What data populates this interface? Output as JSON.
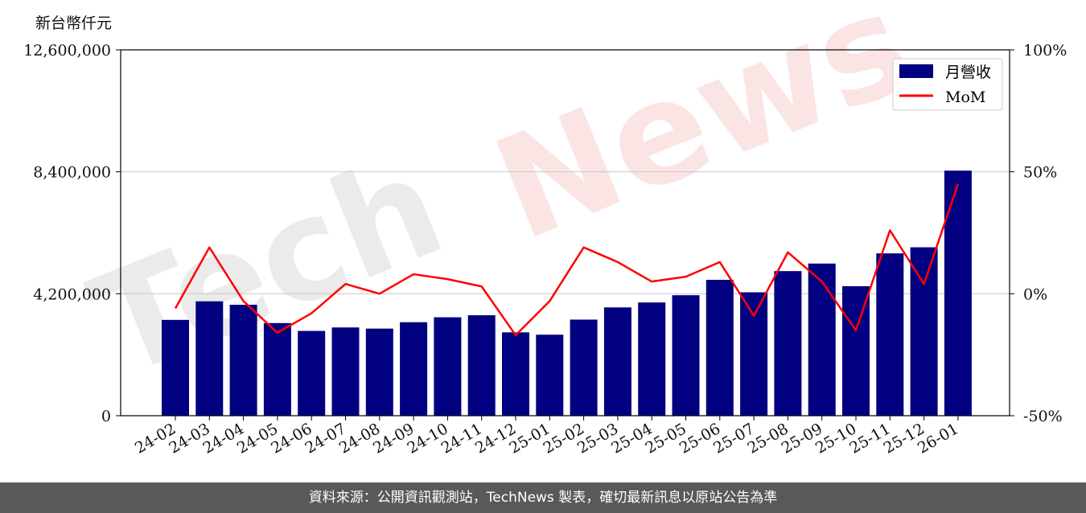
{
  "unit_label": "新台幣仟元",
  "footer_text": "資料來源：公開資訊觀測站，TechNews 製表，確切最新訊息以原站公告為準",
  "watermark": {
    "text_a": "Tech",
    "text_b": "News"
  },
  "colors": {
    "bar": "#000080",
    "line": "#ff0000",
    "grid": "#cccccc",
    "footer_bg": "#595959",
    "watermark_a": "#ebebeb",
    "watermark_b": "#fbe4e4"
  },
  "chart_data": {
    "type": "bar",
    "categories": [
      "24-02",
      "24-03",
      "24-04",
      "24-05",
      "24-06",
      "24-07",
      "24-08",
      "24-09",
      "24-10",
      "24-11",
      "24-12",
      "25-01",
      "25-02",
      "25-03",
      "25-04",
      "25-05",
      "25-06",
      "25-07",
      "25-08",
      "25-09",
      "25-10",
      "25-11",
      "25-12",
      "26-01"
    ],
    "series": [
      {
        "name": "月營收",
        "type": "bar",
        "axis": "left",
        "values": [
          3300000,
          3940000,
          3820000,
          3190000,
          2920000,
          3040000,
          3000000,
          3220000,
          3390000,
          3460000,
          2870000,
          2790000,
          3310000,
          3730000,
          3900000,
          4150000,
          4680000,
          4250000,
          4980000,
          5240000,
          4460000,
          5590000,
          5800000,
          8440000
        ]
      },
      {
        "name": "MoM",
        "type": "line",
        "axis": "right",
        "values": [
          -6,
          19,
          -3,
          -16,
          -8,
          4,
          0,
          8,
          6,
          3,
          -17,
          -3,
          19,
          13,
          5,
          7,
          13,
          -9,
          17,
          5,
          -15,
          26,
          4,
          45
        ]
      }
    ],
    "y_left": {
      "lim": [
        0,
        12600000
      ],
      "ticks": [
        0,
        4200000,
        8400000,
        12600000
      ],
      "tick_labels": [
        "0",
        "4,200,000",
        "8,400,000",
        "12,600,000"
      ]
    },
    "y_right": {
      "lim": [
        -50,
        100
      ],
      "ticks": [
        -50,
        0,
        50,
        100
      ],
      "tick_labels": [
        "-50%",
        "0%",
        "50%",
        "100%"
      ]
    },
    "grid": "horizontal",
    "legend": "top-right"
  }
}
